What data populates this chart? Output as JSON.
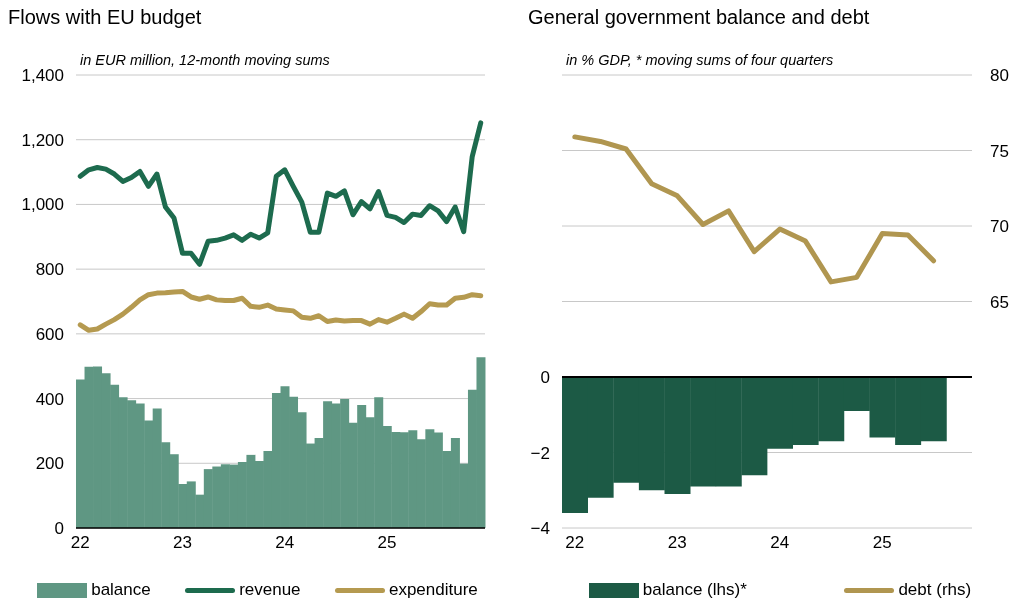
{
  "chart_data": [
    {
      "type": "bar",
      "title": "Flows with EU budget",
      "subtitle": "in EUR million, 12-month moving sums",
      "categories": [
        "22",
        null,
        null,
        null,
        null,
        null,
        null,
        null,
        null,
        null,
        null,
        null,
        "23",
        null,
        null,
        null,
        null,
        null,
        null,
        null,
        null,
        null,
        null,
        null,
        "24",
        null,
        null,
        null,
        null,
        null,
        null,
        null,
        null,
        null,
        null,
        null,
        "25",
        null,
        null,
        null,
        null,
        null,
        null,
        null,
        null,
        null,
        null,
        null
      ],
      "series": [
        {
          "name": "balance",
          "color": "#5f9783",
          "values": [
            459,
            498,
            499,
            478,
            443,
            404,
            395,
            385,
            332,
            369,
            265,
            228,
            136,
            144,
            103,
            182,
            190,
            197,
            196,
            204,
            226,
            207,
            238,
            417,
            438,
            406,
            358,
            261,
            278,
            392,
            385,
            399,
            325,
            380,
            342,
            404,
            315,
            297,
            296,
            302,
            274,
            305,
            295,
            238,
            278,
            199,
            427,
            528
          ]
        },
        {
          "name": "revenue",
          "type": "line",
          "color": "#1d6b4e",
          "values": [
            1087,
            1107,
            1114,
            1109,
            1094,
            1071,
            1083,
            1102,
            1056,
            1094,
            992,
            958,
            849,
            849,
            815,
            886,
            889,
            896,
            906,
            889,
            908,
            896,
            912,
            1087,
            1107,
            1056,
            1007,
            914,
            914,
            1035,
            1025,
            1042,
            968,
            1009,
            986,
            1040,
            966,
            960,
            944,
            970,
            966,
            996,
            980,
            947,
            992,
            916,
            1148,
            1252
          ]
        },
        {
          "name": "expenditure",
          "type": "line",
          "color": "#b59a50",
          "values": [
            628,
            611,
            615,
            630,
            644,
            661,
            682,
            705,
            721,
            726,
            727,
            729,
            731,
            714,
            707,
            714,
            705,
            703,
            703,
            710,
            685,
            682,
            689,
            677,
            674,
            671,
            651,
            648,
            656,
            638,
            643,
            640,
            641,
            641,
            630,
            644,
            636,
            648,
            661,
            648,
            669,
            693,
            689,
            689,
            710,
            713,
            721,
            718
          ]
        }
      ],
      "ylim": [
        0,
        1400
      ],
      "yticks": [
        0,
        200,
        400,
        600,
        800,
        {
          "value": 1000,
          "label": "1,000"
        },
        {
          "value": 1200,
          "label": "1,200"
        },
        {
          "value": 1400,
          "label": "1,400"
        }
      ],
      "grid": "y",
      "legend": "bottom"
    },
    {
      "type": "bar",
      "title": "General government balance and debt",
      "subtitle": "in % GDP, * moving sums of four quarters",
      "categories": [
        "22",
        null,
        null,
        null,
        "23",
        null,
        null,
        null,
        "24",
        null,
        null,
        null,
        "25",
        null,
        null,
        null
      ],
      "series": [
        {
          "name": "balance (lhs)*",
          "color": "#1c5a45",
          "values": [
            -3.6,
            -3.2,
            -2.8,
            -3.0,
            -3.1,
            -2.9,
            -2.9,
            -2.6,
            -1.9,
            -1.8,
            -1.7,
            -0.9,
            -1.6,
            -1.8,
            -1.7,
            null
          ]
        },
        {
          "name": "debt (rhs)",
          "type": "line",
          "axis": "y2",
          "color": "#b09650",
          "values": [
            75.9,
            75.6,
            75.1,
            72.8,
            72.0,
            70.1,
            71.0,
            68.3,
            69.8,
            69.0,
            66.3,
            66.6,
            69.5,
            69.4,
            67.7,
            null
          ]
        }
      ],
      "ylim": [
        -4,
        8
      ],
      "yticks": [
        {
          "value": -4,
          "label": "−4"
        },
        {
          "value": -2,
          "label": "−2"
        },
        0
      ],
      "y2lim": [
        50,
        80
      ],
      "y2ticks": [
        65,
        70,
        75,
        80
      ],
      "grid": "y",
      "legend": "bottom"
    }
  ]
}
